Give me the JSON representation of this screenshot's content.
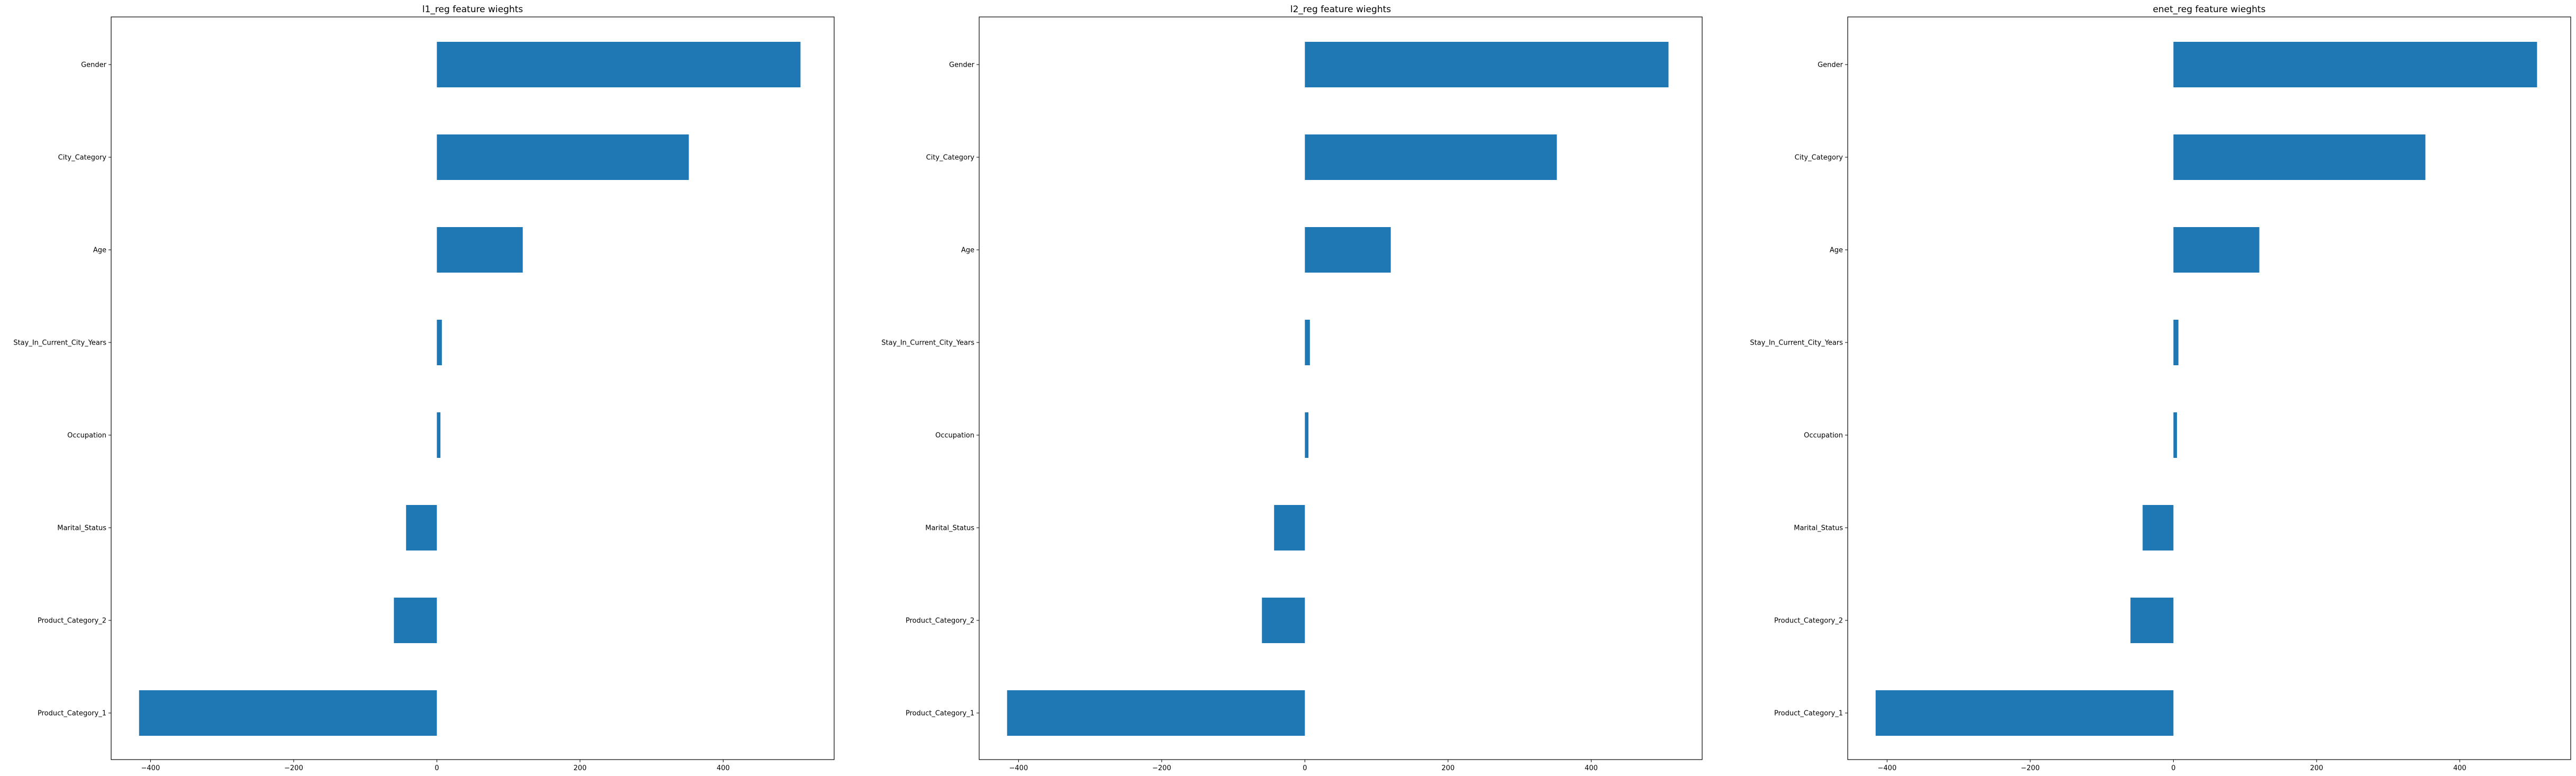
{
  "chart_data": [
    {
      "type": "bar",
      "orientation": "horizontal",
      "title": "l1_reg feature wieghts",
      "xlabel": "",
      "ylabel": "",
      "categories": [
        "Gender",
        "City_Category",
        "Age",
        "Stay_In_Current_City_Years",
        "Occupation",
        "Marital_Status",
        "Product_Category_2",
        "Product_Category_1"
      ],
      "values": [
        508,
        352,
        120,
        7,
        5,
        -43,
        -60,
        -416
      ],
      "xlim": [
        -455,
        555
      ],
      "xticks": [
        -400,
        -200,
        0,
        200,
        400
      ],
      "xtick_labels": [
        "−400",
        "−200",
        "0",
        "200",
        "400"
      ],
      "color": "#1f77b4",
      "grid": false
    },
    {
      "type": "bar",
      "orientation": "horizontal",
      "title": "l2_reg feature wieghts",
      "xlabel": "",
      "ylabel": "",
      "categories": [
        "Gender",
        "City_Category",
        "Age",
        "Stay_In_Current_City_Years",
        "Occupation",
        "Marital_Status",
        "Product_Category_2",
        "Product_Category_1"
      ],
      "values": [
        508,
        352,
        120,
        7,
        5,
        -43,
        -60,
        -416
      ],
      "xlim": [
        -455,
        555
      ],
      "xticks": [
        -400,
        -200,
        0,
        200,
        400
      ],
      "xtick_labels": [
        "−400",
        "−200",
        "0",
        "200",
        "400"
      ],
      "color": "#1f77b4",
      "grid": false
    },
    {
      "type": "bar",
      "orientation": "horizontal",
      "title": "enet_reg feature wieghts",
      "xlabel": "",
      "ylabel": "",
      "categories": [
        "Gender",
        "City_Category",
        "Age",
        "Stay_In_Current_City_Years",
        "Occupation",
        "Marital_Status",
        "Product_Category_2",
        "Product_Category_1"
      ],
      "values": [
        508,
        352,
        120,
        7,
        5,
        -43,
        -60,
        -416
      ],
      "xlim": [
        -455,
        555
      ],
      "xticks": [
        -400,
        -200,
        0,
        200,
        400
      ],
      "xtick_labels": [
        "−400",
        "−200",
        "0",
        "200",
        "400"
      ],
      "color": "#1f77b4",
      "grid": false
    }
  ]
}
